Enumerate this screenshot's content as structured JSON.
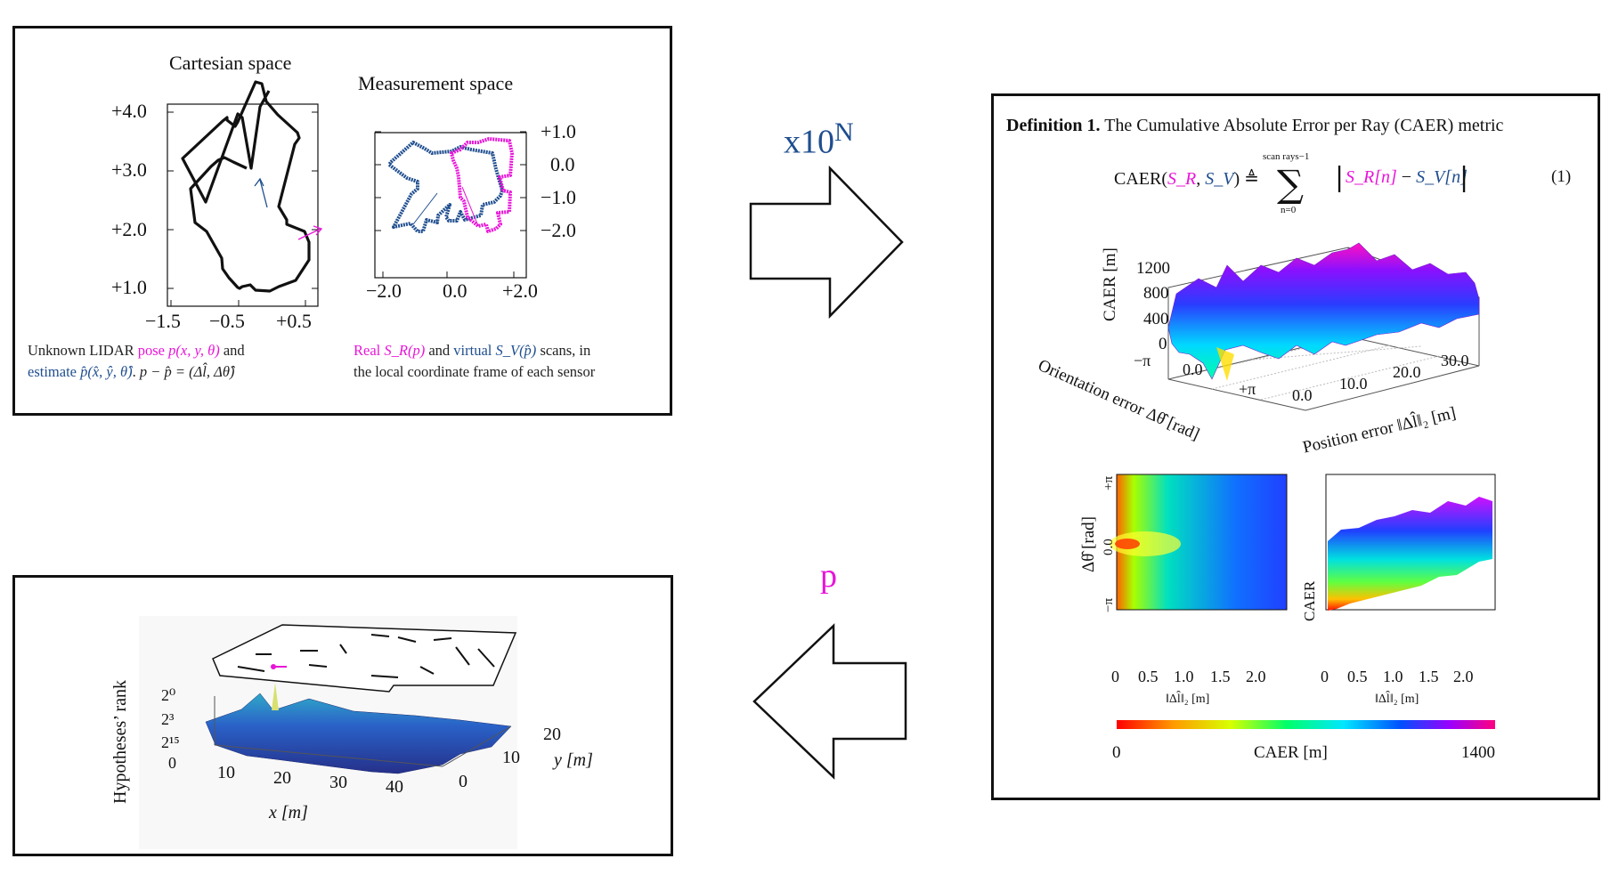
{
  "colors": {
    "pink": "#e815d8",
    "blue": "#1f4e8f",
    "black": "#111111"
  },
  "arrows": {
    "top_label_base": "x10",
    "top_label_exp": "N",
    "bottom_label": "p"
  },
  "cartesian": {
    "title": "Cartesian space",
    "y_ticks": [
      "+4.0",
      "+3.0",
      "+2.0",
      "+1.0"
    ],
    "x_ticks": [
      "−1.5",
      "−0.5",
      "+0.5"
    ],
    "caption_line1": [
      "Unknown LIDAR ",
      "pose ",
      "p(x, y, θ)",
      " and"
    ],
    "caption_line2": [
      "estimate ",
      "p̂(x̂, ŷ, θ̂)",
      ". ",
      "p − p̂ = (Δl̂, Δθ̂)"
    ]
  },
  "measurement": {
    "title": "Measurement space",
    "y_ticks": [
      "+1.0",
      "0.0",
      "−1.0",
      "−2.0"
    ],
    "x_ticks": [
      "−2.0",
      "0.0",
      "+2.0"
    ],
    "caption_line1": [
      "Real ",
      "S_R(p)",
      " and ",
      "virtual ",
      "S_V(p̂)",
      " scans, in"
    ],
    "caption_line2": "the local coordinate frame of each sensor"
  },
  "definition": {
    "heading": "Definition 1.",
    "text": "The Cumulative Absolute Error per Ray (CAER) metric",
    "lhs": "CAER(",
    "sr": "S_R",
    "sep": ", ",
    "sv": "S_V",
    "rhs_close": ") ≜",
    "sum_top": "scan rays−1",
    "sum_bottom": "n=0",
    "term_sr": "S_R[n]",
    "term_minus": " − ",
    "term_sv": "S_V[n]",
    "eq_number": "(1)"
  },
  "surface3d": {
    "zlabel": "CAER [m]",
    "z_ticks": [
      "1200",
      "800",
      "400",
      "0"
    ],
    "orient_ticks": [
      "−π",
      "0.0",
      "+π"
    ],
    "pos_ticks": [
      "0.0",
      "10.0",
      "20.0",
      "30.0"
    ],
    "orient_label": "Orientation error Δθ̂ [rad]",
    "pos_label": "Position error ‖Δl̂‖₂ [m]"
  },
  "heatmap": {
    "ylabel": "Δθ̂ [rad]",
    "y_ticks": [
      "+π",
      "0.0",
      "−π"
    ],
    "x_ticks": [
      "0",
      "0.5",
      "1.0",
      "1.5",
      "2.0"
    ],
    "xlabel": "‖Δl̂‖₂ [m]"
  },
  "profile": {
    "ylabel": "CAER",
    "x_ticks": [
      "0",
      "0.5",
      "1.0",
      "1.5",
      "2.0"
    ],
    "xlabel": "‖Δl̂‖₂ [m]"
  },
  "colorbar": {
    "min": "0",
    "label": "CAER [m]",
    "max": "1400"
  },
  "rank_plot": {
    "zlabel": "Hypotheses’ rank",
    "z_ticks": [
      "2⁰",
      "2³",
      "2¹⁵",
      "0"
    ],
    "x_ticks": [
      "10",
      "20",
      "30",
      "40"
    ],
    "xlabel": "x [m]",
    "y_ticks": [
      "20",
      "10",
      "0"
    ],
    "ylabel": "y [m]"
  }
}
